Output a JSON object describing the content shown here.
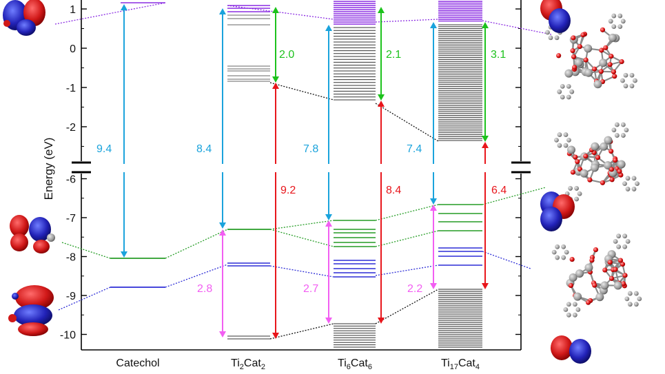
{
  "colors": {
    "homo_lumo_gap": "#1aa3dc",
    "cluster_gap": "#e8151b",
    "lumo_offset": "#1cc21c",
    "homo_offset": "#f25ef2",
    "frontier_green": "#249c24",
    "frontier_blue": "#2b2bd6",
    "unoccupied_purple": "#8a2be2",
    "ti_states": "#111111"
  },
  "axis": {
    "ylabel": "Energy (eV)",
    "upper_ticks": [
      "1",
      "0",
      "-1",
      "-2"
    ],
    "lower_ticks": [
      "-6",
      "-7",
      "-8",
      "-9",
      "-10"
    ]
  },
  "categories": [
    {
      "main": "Catechol",
      "sub": "",
      "tail": ""
    },
    {
      "main": "Ti",
      "sub": "2",
      "tail": "Cat",
      "sub2": "2"
    },
    {
      "main": "Ti",
      "sub": "6",
      "tail": "Cat",
      "sub2": "6"
    },
    {
      "main": "Ti",
      "sub": "17",
      "tail": "Cat",
      "sub2": "4"
    }
  ],
  "chart_data": {
    "type": "energy_level_diagram",
    "y_unit": "eV",
    "y_break": [
      -5.5,
      -3.0
    ],
    "levels": [
      {
        "system": "Catechol",
        "occupied_green": [
          -8.0
        ],
        "occupied_blue": [
          -8.8
        ],
        "unoccupied": [
          1.2
        ]
      },
      {
        "system": "Ti2Cat2",
        "gaps_eV": {
          "blue": 8.4,
          "green": 2.0,
          "red": 9.2,
          "pink": 2.8
        }
      },
      {
        "system": "Ti6Cat6",
        "gaps_eV": {
          "blue": 7.8,
          "green": 2.1,
          "red": 8.4,
          "pink": 2.7
        }
      },
      {
        "system": "Ti17Cat4",
        "gaps_eV": {
          "blue": 7.4,
          "green": 3.1,
          "red": 6.4,
          "pink": 2.2
        }
      }
    ],
    "gap_labels": {
      "catechol_blue": "9.4",
      "ti2_blue": "8.4",
      "ti2_green": "2.0",
      "ti2_red": "9.2",
      "ti2_pink": "2.8",
      "ti6_blue": "7.8",
      "ti6_green": "2.1",
      "ti6_red": "8.4",
      "ti6_pink": "2.7",
      "ti17_blue": "7.4",
      "ti17_green": "3.1",
      "ti17_red": "6.4",
      "ti17_pink": "2.2"
    }
  }
}
